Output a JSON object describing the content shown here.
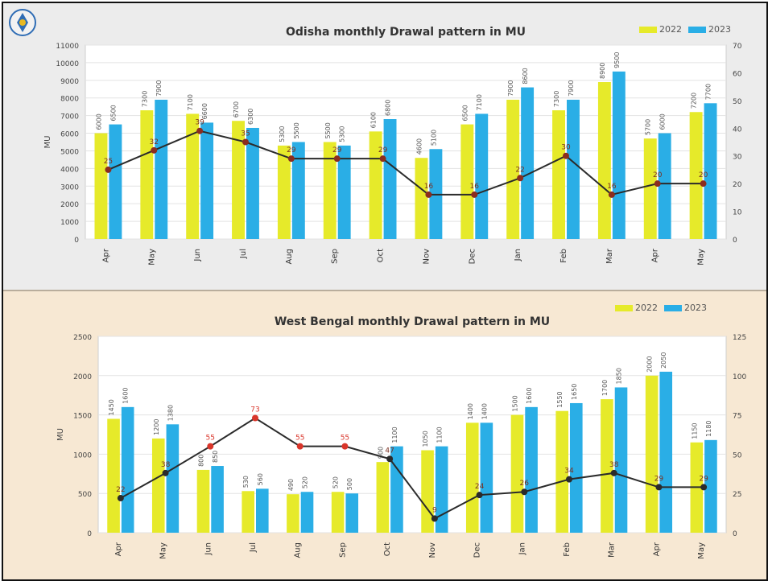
{
  "colors": {
    "yellow": "#e6ea2a",
    "blue": "#2aaee6",
    "line": "#2b2b2b",
    "marker_top": "#8b2d1f",
    "marker_bottom_hi": "#d9352a"
  },
  "chart_data": [
    {
      "type": "bar",
      "title": "Odisha monthly Drawal pattern in MU",
      "ylabel": "MU",
      "y2label": "",
      "legend": [
        "2022",
        "2023"
      ],
      "categories": [
        "Apr",
        "May",
        "Jun",
        "Jul",
        "Aug",
        "Sep",
        "Oct",
        "Nov",
        "Dec",
        "Jan",
        "Feb",
        "Mar",
        "Apr",
        "May"
      ],
      "y_ticks": [
        "0",
        "1000",
        "2000",
        "3000",
        "4000",
        "5000",
        "6000",
        "7000",
        "8000",
        "9000",
        "10000",
        "11000"
      ],
      "y2_ticks": [
        "0",
        "10",
        "20",
        "30",
        "40",
        "50",
        "60",
        "70"
      ],
      "ylim": [
        0,
        11000
      ],
      "y2lim": [
        0,
        70
      ],
      "series": [
        {
          "name": "2022",
          "values": [
            6000,
            7300,
            7100,
            6700,
            5300,
            5500,
            6100,
            4600,
            6500,
            7900,
            7300,
            8900,
            5700,
            7200
          ]
        },
        {
          "name": "2023",
          "values": [
            6500,
            7900,
            6600,
            6300,
            5500,
            5300,
            6800,
            5100,
            7100,
            8600,
            7900,
            9500,
            6000,
            7700
          ]
        }
      ],
      "growth": [
        25,
        32,
        39,
        35,
        29,
        29,
        29,
        16,
        16,
        22,
        30,
        16,
        20,
        20
      ]
    },
    {
      "type": "bar",
      "title": "West Bengal monthly Drawal pattern in MU",
      "ylabel": "MU",
      "y2label": "",
      "legend": [
        "2022",
        "2023"
      ],
      "categories": [
        "Apr",
        "May",
        "Jun",
        "Jul",
        "Aug",
        "Sep",
        "Oct",
        "Nov",
        "Dec",
        "Jan",
        "Feb",
        "Mar",
        "Apr",
        "May"
      ],
      "y_ticks": [
        "0",
        "500",
        "1000",
        "1500",
        "2000",
        "2500"
      ],
      "y2_ticks": [
        "0",
        "25",
        "50",
        "75",
        "100",
        "125"
      ],
      "ylim": [
        0,
        2500
      ],
      "y2lim": [
        0,
        125
      ],
      "series": [
        {
          "name": "2022",
          "values": [
            1450,
            1200,
            800,
            530,
            490,
            520,
            900,
            1050,
            1400,
            1500,
            1550,
            1700,
            2000,
            1150
          ]
        },
        {
          "name": "2023",
          "values": [
            1600,
            1380,
            850,
            560,
            520,
            500,
            1100,
            1100,
            1400,
            1600,
            1650,
            1850,
            2050,
            1180
          ]
        }
      ],
      "growth": [
        22,
        38,
        55,
        73,
        55,
        55,
        47,
        9,
        24,
        26,
        34,
        38,
        29,
        29
      ]
    }
  ]
}
